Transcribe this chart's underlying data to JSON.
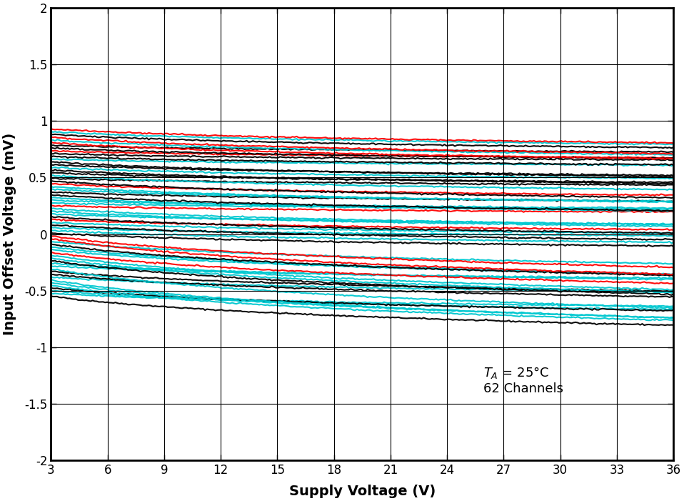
{
  "title": "",
  "xlabel": "Supply Voltage (V)",
  "ylabel": "Input Offset Voltage (mV)",
  "annotation_line1": "T",
  "annotation_subscript": "A",
  "annotation_line2": " = 25°C",
  "annotation_line3": "62 Channels",
  "xlim": [
    3,
    36
  ],
  "ylim": [
    -2,
    2
  ],
  "xticks": [
    3,
    6,
    9,
    12,
    15,
    18,
    21,
    24,
    27,
    30,
    33,
    36
  ],
  "yticks": [
    -2,
    -1.5,
    -1,
    -0.5,
    0,
    0.5,
    1,
    1.5,
    2
  ],
  "colors": {
    "red": "#ff0000",
    "black": "#000000",
    "cyan": "#00c8d0"
  },
  "n_channels": 62,
  "background": "#ffffff",
  "grid_color": "#000000",
  "line_width": 1.5
}
